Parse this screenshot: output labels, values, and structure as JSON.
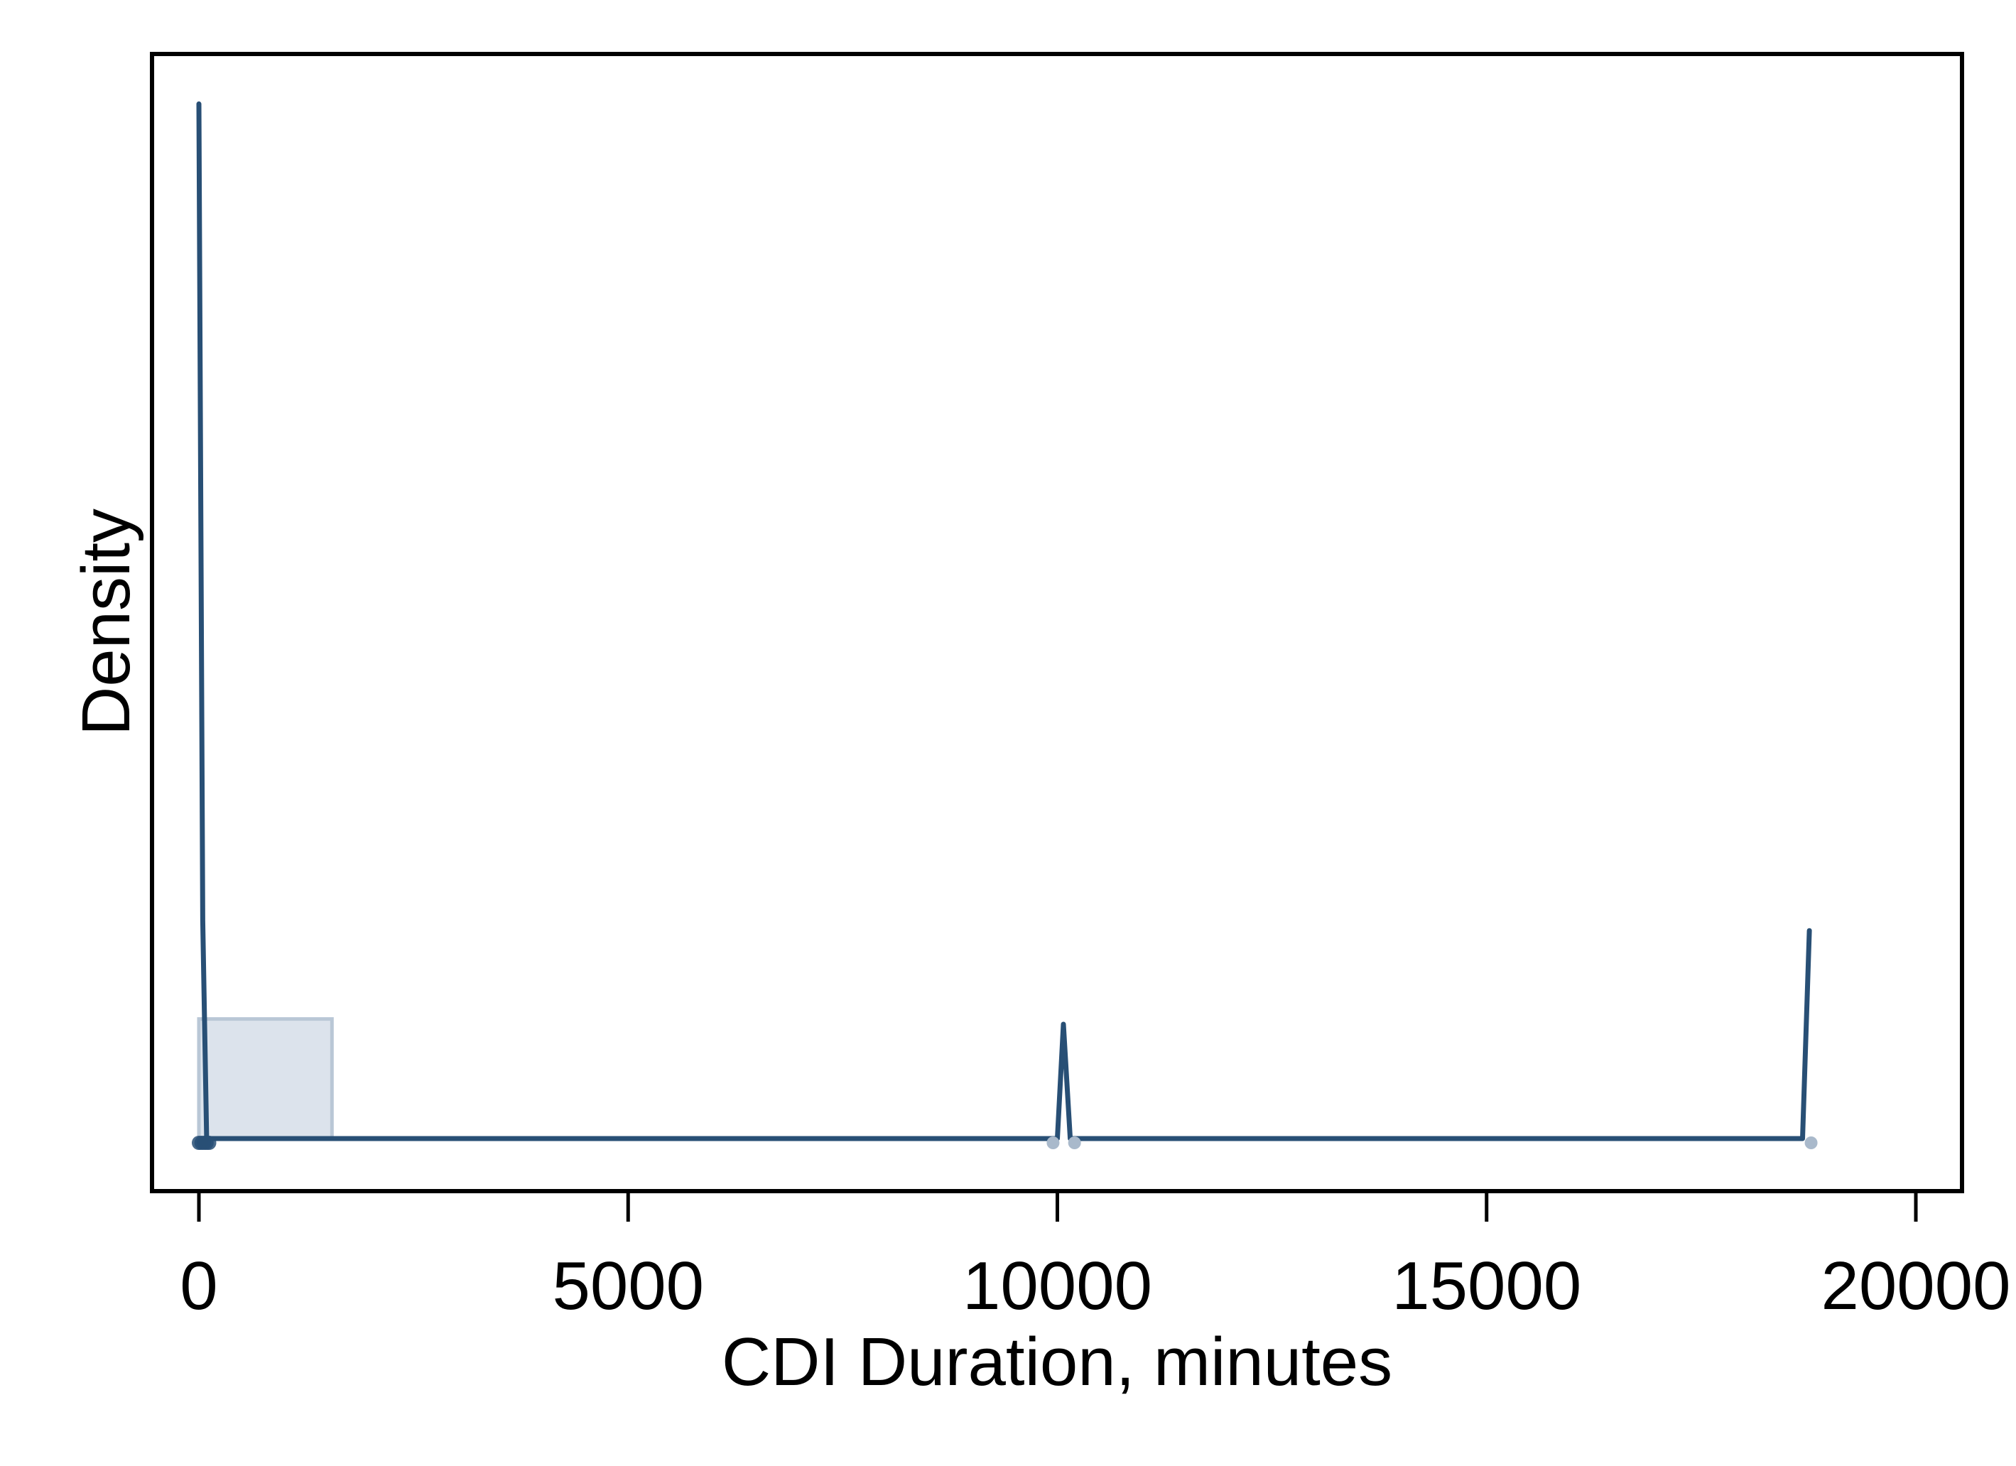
{
  "chart_data": {
    "type": "area",
    "xlabel": "CDI Duration, minutes",
    "ylabel": "Density",
    "xlim": [
      -200,
      20000
    ],
    "ylim": [
      0,
      1
    ],
    "x_ticks": [
      0,
      5000,
      10000,
      15000,
      20000
    ],
    "x_tick_labels": [
      "0",
      "5000",
      "10000",
      "15000",
      "20000"
    ],
    "y_ticks": [],
    "grid": false,
    "legend": "none",
    "histogram": {
      "bins": [
        {
          "start": 0,
          "end": 1550,
          "density": 0.115
        }
      ]
    },
    "density_curve": {
      "x": [
        0,
        45,
        90,
        150,
        10000,
        10070,
        10150,
        18680,
        18760
      ],
      "y": [
        0.995,
        0.21,
        0.0,
        0.0,
        0.0,
        0.11,
        0.0,
        0.0,
        0.2
      ]
    },
    "observations": [
      0,
      30,
      60,
      90,
      120,
      9950,
      10200,
      18780
    ],
    "colors": {
      "line": "#284f75",
      "bar_fill": "#dce3ec",
      "bar_edge": "#b9c7d6",
      "rug": "#a9b9cb",
      "axes": "#000000"
    }
  }
}
